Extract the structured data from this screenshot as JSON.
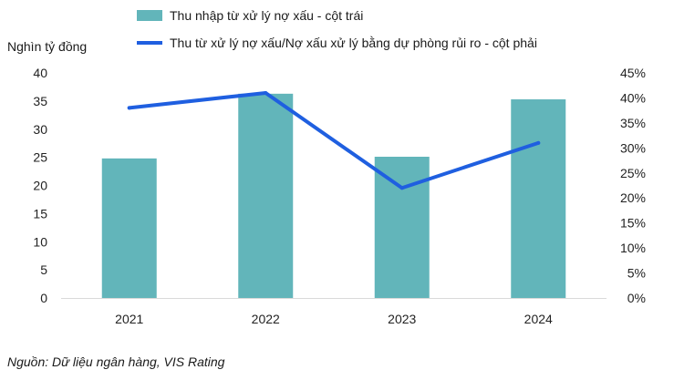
{
  "chart_data": {
    "type": "bar+line",
    "categories": [
      "2021",
      "2022",
      "2023",
      "2024"
    ],
    "series": [
      {
        "name": "Thu nhập từ xử lý nợ xấu - cột trái",
        "kind": "bar",
        "axis": "left",
        "values": [
          24.8,
          36.3,
          25.1,
          35.3
        ],
        "color": "#62b5ba"
      },
      {
        "name": "Thu từ xử lý nợ xấu/Nợ xấu xử lý bằng dự phòng rủi ro - cột phải",
        "kind": "line",
        "axis": "right",
        "values": [
          0.38,
          0.41,
          0.22,
          0.31
        ],
        "color": "#1f5fe0"
      }
    ],
    "y_left": {
      "label": "Nghìn tỷ đồng",
      "range": [
        0,
        40
      ],
      "ticks": [
        "0",
        "5",
        "10",
        "15",
        "20",
        "25",
        "30",
        "35",
        "40"
      ]
    },
    "y_right": {
      "range": [
        0,
        0.45
      ],
      "ticks": [
        "0%",
        "5%",
        "10%",
        "15%",
        "20%",
        "25%",
        "30%",
        "35%",
        "40%",
        "45%"
      ]
    },
    "legend_position": "top-center",
    "grid": false
  },
  "source": "Nguồn: Dữ liệu ngân hàng, VIS Rating"
}
